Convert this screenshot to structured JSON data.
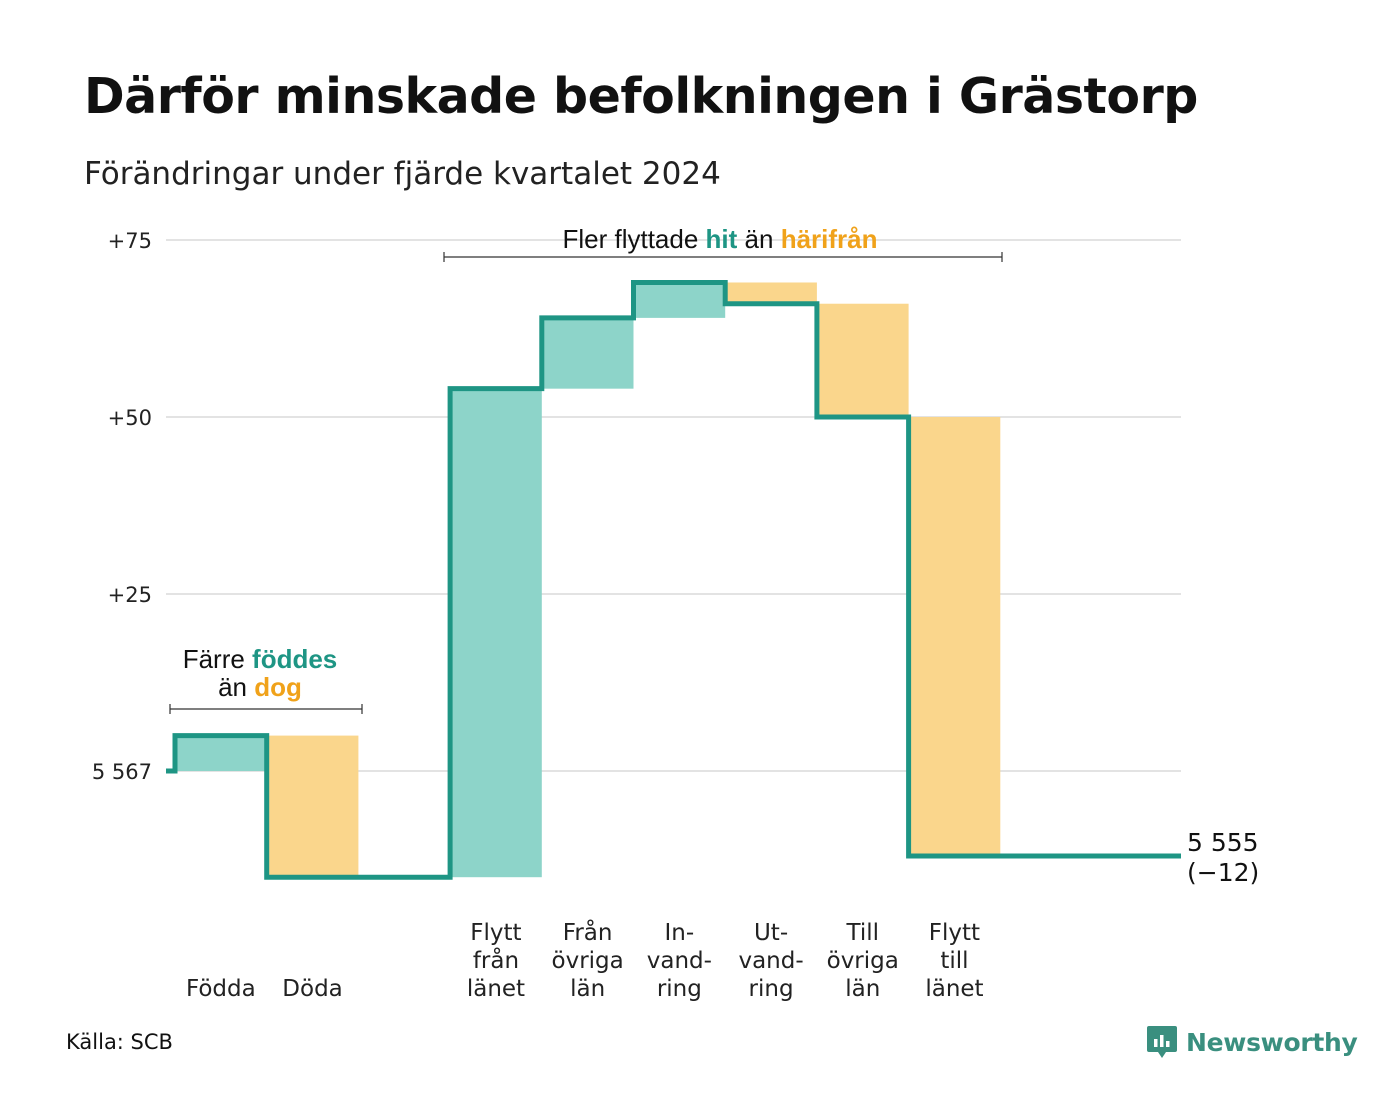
{
  "title": "Därför minskade befolkningen i Grästorp",
  "subtitle": "Förändringar under fjärde kvartalet 2024",
  "source": "Källa: SCB",
  "brand": {
    "name": "Newsworthy",
    "icon": "newsworthy-logo-icon"
  },
  "colors": {
    "increase": "#8dd4c9",
    "decrease": "#fad68c",
    "line": "#1e9584",
    "accent_hit": "#1e9584",
    "accent_harifran": "#f0a21a",
    "grid": "#e3e3e3"
  },
  "annotations": {
    "births": {
      "line1_prefix": "Färre ",
      "line1_strong": "föddes",
      "line2_prefix": "än ",
      "line2_strong": "dog"
    },
    "moves": {
      "prefix": "Fler flyttade ",
      "strong1": "hit",
      "mid": " än ",
      "strong2": "härifrån"
    }
  },
  "end_label": {
    "value": "5 555",
    "change": "(−12)"
  },
  "chart_data": {
    "type": "waterfall",
    "start_value": 5567,
    "end_value": 5555,
    "y_tick_labels": [
      "5 567",
      "+25",
      "+50",
      "+75"
    ],
    "y_ticks_offset": [
      0,
      25,
      50,
      75
    ],
    "ylim_offset": [
      -18,
      75
    ],
    "grid": true,
    "categories": [
      {
        "label": [
          "Födda"
        ],
        "change": 5
      },
      {
        "label": [
          "Döda"
        ],
        "change": -20
      },
      {
        "label": [],
        "change": 0
      },
      {
        "label": [
          "Flytt",
          "från",
          "länet"
        ],
        "change": 69
      },
      {
        "label": [
          "Från",
          "övriga",
          "län"
        ],
        "change": 10
      },
      {
        "label": [
          "In-",
          "vand-",
          "ring"
        ],
        "change": 5
      },
      {
        "label": [
          "Ut-",
          "vand-",
          "ring"
        ],
        "change": -3
      },
      {
        "label": [
          "Till",
          "övriga",
          "län"
        ],
        "change": -16
      },
      {
        "label": [
          "Flytt",
          "till",
          "länet"
        ],
        "change": -62
      }
    ]
  }
}
